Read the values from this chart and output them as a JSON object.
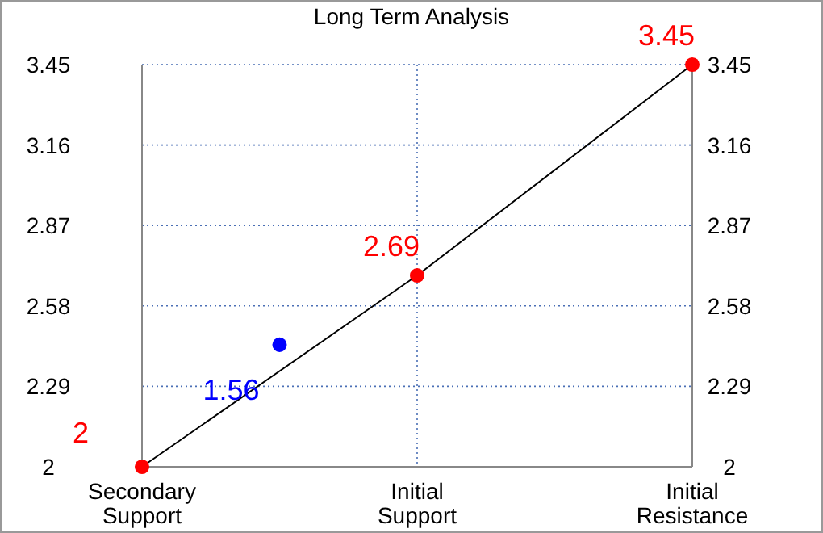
{
  "chart_data": {
    "type": "line",
    "title": "Long Term Analysis",
    "categories": [
      "Secondary Support",
      null,
      "Initial Support",
      null,
      "Initial Resistance"
    ],
    "ylim": [
      2,
      3.45
    ],
    "yticks": [
      2,
      2.29,
      2.58,
      2.87,
      3.16,
      3.45
    ],
    "y2lim": [
      2,
      3.45
    ],
    "y2ticks": [
      2,
      2.29,
      2.58,
      2.87,
      3.16,
      3.45
    ],
    "grid": true,
    "annotations": [
      "1.56"
    ],
    "series": [
      {
        "type": "line",
        "color": "#000000",
        "values": [
          2,
          null,
          2.69,
          null,
          3.45
        ],
        "marker": "none"
      },
      {
        "type": "scatter",
        "color": "#ff0000",
        "values": [
          2,
          null,
          2.69,
          null,
          3.45
        ],
        "marker": "circle",
        "data_labels": true
      },
      {
        "type": "scatter",
        "color": "#0000ff",
        "values": [
          null,
          2.44,
          null,
          null,
          null
        ],
        "marker": "circle"
      }
    ]
  }
}
